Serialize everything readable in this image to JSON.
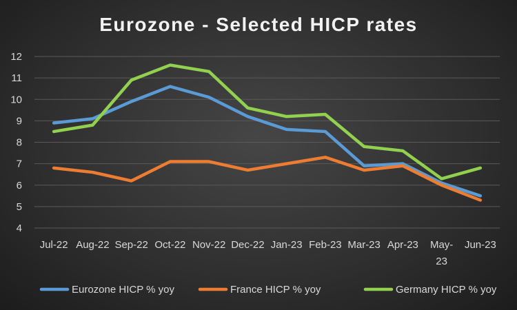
{
  "chart_data": {
    "type": "line",
    "title": "Eurozone - Selected HICP rates",
    "xlabel": "",
    "ylabel": "",
    "categories": [
      "Jul-22",
      "Aug-22",
      "Sep-22",
      "Oct-22",
      "Nov-22",
      "Dec-22",
      "Jan-23",
      "Feb-23",
      "Mar-23",
      "Apr-23",
      "May-23",
      "Jun-23"
    ],
    "ylim": [
      4,
      12
    ],
    "yticks": [
      "4",
      "5",
      "6",
      "7",
      "8",
      "9",
      "10",
      "11",
      "12"
    ],
    "grid": true,
    "legend_position": "bottom",
    "series": [
      {
        "name": "Eurozone HICP % yoy",
        "color": "#5b9bd5",
        "values": [
          8.9,
          9.1,
          9.9,
          10.6,
          10.1,
          9.2,
          8.6,
          8.5,
          6.9,
          7.0,
          6.1,
          5.5
        ]
      },
      {
        "name": "France HICP % yoy",
        "color": "#ed7d31",
        "values": [
          6.8,
          6.6,
          6.2,
          7.1,
          7.1,
          6.7,
          7.0,
          7.3,
          6.7,
          6.9,
          6.0,
          5.3
        ]
      },
      {
        "name": "Germany HICP % yoy",
        "color": "#92d050",
        "values": [
          8.5,
          8.8,
          10.9,
          11.6,
          11.3,
          9.6,
          9.2,
          9.3,
          7.8,
          7.6,
          6.3,
          6.8
        ]
      }
    ]
  }
}
